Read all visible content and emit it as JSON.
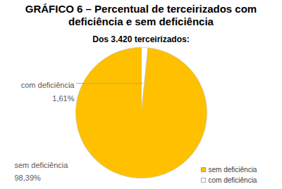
{
  "chart_data": {
    "type": "pie",
    "title": "GRÁFICO 6 – Percentual de terceirizados com deficiência e sem deficiência",
    "subtitle": "Dos 3.420 terceirizados:",
    "categories": [
      "com deficiência",
      "sem deficiência"
    ],
    "values": [
      1.61,
      98.39
    ],
    "value_labels": [
      "1,61%",
      "98,39%"
    ],
    "colors": [
      "#ffffff",
      "#ffc000"
    ],
    "data_labels": true,
    "legend": "bottom-right"
  }
}
